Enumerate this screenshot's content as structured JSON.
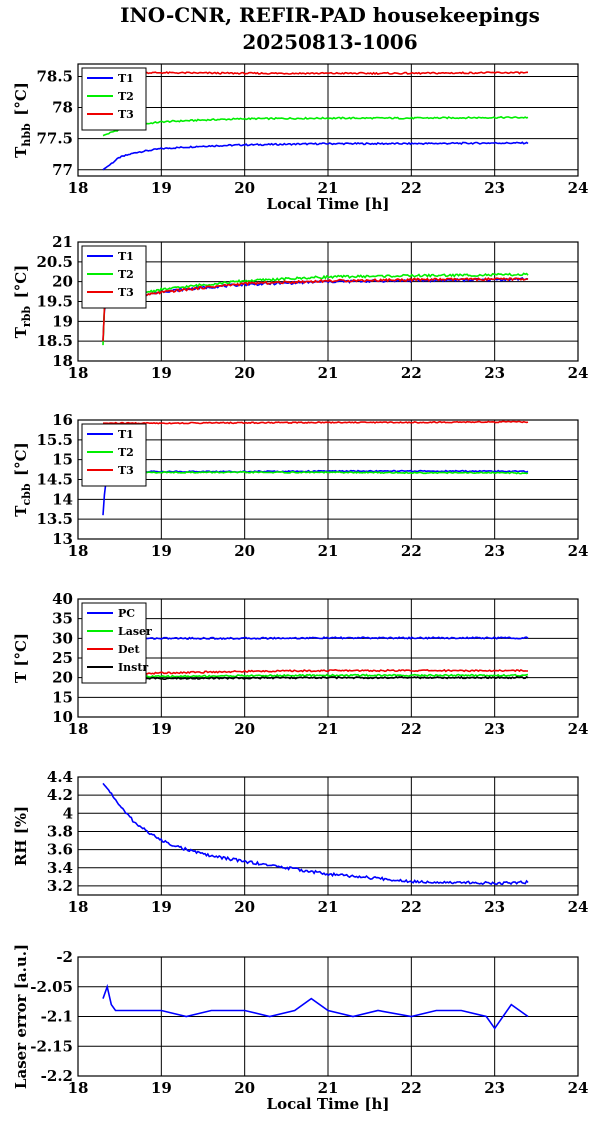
{
  "title_line1": "INO-CNR, REFIR-PAD housekeepings",
  "title_line2": "20250813-1006",
  "colors": {
    "blue": "#0000ff",
    "green": "#00ee00",
    "red": "#ee0000",
    "black": "#000000"
  },
  "chart_data": [
    {
      "type": "line",
      "ylabel": "T",
      "ylabel_sub": "hbb",
      "ylabel_unit": "[°C]",
      "xlabel": "Local Time [h]",
      "xlim": [
        18,
        24
      ],
      "ylim": [
        76.9,
        78.7
      ],
      "xticks": [
        18,
        19,
        20,
        21,
        22,
        23,
        24
      ],
      "yticks": [
        77,
        77.5,
        78,
        78.5
      ],
      "ytick_labels": [
        "77",
        "77.5",
        "78",
        "78.5"
      ],
      "grid": true,
      "legend_position": "top-left",
      "series": [
        {
          "name": "T1",
          "color": "#0000ff",
          "x": [
            18.3,
            18.5,
            18.7,
            19.0,
            19.5,
            20.0,
            21.0,
            22.0,
            23.0,
            23.4
          ],
          "y": [
            77.0,
            77.2,
            77.28,
            77.34,
            77.38,
            77.4,
            77.42,
            77.42,
            77.43,
            77.43
          ]
        },
        {
          "name": "T2",
          "color": "#00ee00",
          "x": [
            18.3,
            18.5,
            18.7,
            19.0,
            19.5,
            20.0,
            21.0,
            22.0,
            23.0,
            23.4
          ],
          "y": [
            77.55,
            77.65,
            77.72,
            77.77,
            77.8,
            77.82,
            77.83,
            77.83,
            77.84,
            77.84
          ]
        },
        {
          "name": "T3",
          "color": "#ee0000",
          "x": [
            18.3,
            18.7,
            19.0,
            20.0,
            21.0,
            22.0,
            23.0,
            23.4
          ],
          "y": [
            78.55,
            78.56,
            78.56,
            78.55,
            78.55,
            78.55,
            78.56,
            78.56
          ]
        }
      ]
    },
    {
      "type": "line",
      "ylabel": "T",
      "ylabel_sub": "rbb",
      "ylabel_unit": "[°C]",
      "xlabel": "",
      "xlim": [
        18,
        24
      ],
      "ylim": [
        18,
        21
      ],
      "xticks": [
        18,
        19,
        20,
        21,
        22,
        23,
        24
      ],
      "yticks": [
        18,
        18.5,
        19,
        19.5,
        20,
        20.5,
        21
      ],
      "ytick_labels": [
        "18",
        "18.5",
        "19",
        "19.5",
        "20",
        "20.5",
        "21"
      ],
      "grid": true,
      "legend_position": "top-left",
      "series": [
        {
          "name": "T1",
          "color": "#0000ff",
          "x": [
            18.3,
            18.32,
            18.4,
            18.7,
            19.0,
            19.5,
            20.0,
            21.0,
            22.0,
            23.0,
            23.4
          ],
          "y": [
            18.5,
            19.4,
            19.55,
            19.62,
            19.75,
            19.85,
            19.93,
            20.0,
            20.03,
            20.05,
            20.07
          ]
        },
        {
          "name": "T2",
          "color": "#00ee00",
          "x": [
            18.3,
            18.32,
            18.4,
            18.7,
            19.0,
            19.5,
            20.0,
            21.0,
            22.0,
            23.0,
            23.4
          ],
          "y": [
            18.4,
            19.5,
            19.6,
            19.7,
            19.8,
            19.92,
            20.02,
            20.12,
            20.15,
            20.17,
            20.18
          ]
        },
        {
          "name": "T3",
          "color": "#ee0000",
          "x": [
            18.3,
            18.32,
            18.4,
            18.7,
            19.0,
            19.5,
            20.0,
            21.0,
            22.0,
            23.0,
            23.4
          ],
          "y": [
            18.5,
            19.45,
            19.55,
            19.62,
            19.73,
            19.85,
            19.95,
            20.02,
            20.05,
            20.06,
            20.07
          ]
        }
      ]
    },
    {
      "type": "line",
      "ylabel": "T",
      "ylabel_sub": "cbb",
      "ylabel_unit": "[°C]",
      "xlabel": "",
      "xlim": [
        18,
        24
      ],
      "ylim": [
        13,
        16
      ],
      "xticks": [
        18,
        19,
        20,
        21,
        22,
        23,
        24
      ],
      "yticks": [
        13,
        13.5,
        14,
        14.5,
        15,
        15.5,
        16
      ],
      "ytick_labels": [
        "13",
        "13.5",
        "14",
        "14.5",
        "15",
        "15.5",
        "16"
      ],
      "grid": true,
      "legend_position": "top-left",
      "series": [
        {
          "name": "T1",
          "color": "#0000ff",
          "x": [
            18.3,
            18.32,
            18.35,
            18.4,
            19.0,
            20.0,
            21.0,
            22.0,
            23.0,
            23.4
          ],
          "y": [
            13.6,
            14.2,
            14.65,
            14.7,
            14.7,
            14.7,
            14.71,
            14.71,
            14.71,
            14.7
          ]
        },
        {
          "name": "T2",
          "color": "#00ee00",
          "x": [
            18.3,
            18.4,
            19.0,
            20.0,
            21.0,
            22.0,
            23.0,
            23.4
          ],
          "y": [
            14.7,
            14.68,
            14.68,
            14.68,
            14.68,
            14.67,
            14.67,
            14.66
          ]
        },
        {
          "name": "T3",
          "color": "#ee0000",
          "x": [
            18.3,
            19.0,
            20.0,
            21.0,
            22.0,
            23.0,
            23.4
          ],
          "y": [
            15.92,
            15.92,
            15.93,
            15.94,
            15.94,
            15.95,
            15.95
          ]
        }
      ]
    },
    {
      "type": "line",
      "ylabel": "T [°C]",
      "ylabel_sub": "",
      "ylabel_unit": "",
      "xlabel": "",
      "xlim": [
        18,
        24
      ],
      "ylim": [
        10,
        40
      ],
      "xticks": [
        18,
        19,
        20,
        21,
        22,
        23,
        24
      ],
      "yticks": [
        10,
        15,
        20,
        25,
        30,
        35,
        40
      ],
      "ytick_labels": [
        "10",
        "15",
        "20",
        "25",
        "30",
        "35",
        "40"
      ],
      "grid": true,
      "legend_position": "top-left",
      "series": [
        {
          "name": "PC",
          "color": "#0000ff",
          "x": [
            18.3,
            19.0,
            20.0,
            21.0,
            22.0,
            23.0,
            23.4
          ],
          "y": [
            30.0,
            30.0,
            30.0,
            30.1,
            30.1,
            30.1,
            30.1
          ]
        },
        {
          "name": "Laser",
          "color": "#00ee00",
          "x": [
            18.3,
            19.0,
            20.0,
            21.0,
            22.0,
            23.0,
            23.4
          ],
          "y": [
            20.2,
            20.3,
            20.5,
            20.6,
            20.6,
            20.6,
            20.6
          ]
        },
        {
          "name": "Det",
          "color": "#ee0000",
          "x": [
            18.3,
            19.0,
            20.0,
            21.0,
            22.0,
            23.0,
            23.4
          ],
          "y": [
            20.8,
            21.2,
            21.6,
            21.8,
            21.8,
            21.8,
            21.8
          ]
        },
        {
          "name": "Instr",
          "color": "#000000",
          "x": [
            18.3,
            19.0,
            20.0,
            21.0,
            22.0,
            23.0,
            23.4
          ],
          "y": [
            19.8,
            19.8,
            19.9,
            20.0,
            20.0,
            20.0,
            20.0
          ]
        }
      ]
    },
    {
      "type": "line",
      "ylabel": "RH [%]",
      "ylabel_sub": "",
      "ylabel_unit": "",
      "xlabel": "",
      "xlim": [
        18,
        24
      ],
      "ylim": [
        3.1,
        4.4
      ],
      "xticks": [
        18,
        19,
        20,
        21,
        22,
        23,
        24
      ],
      "yticks": [
        3.2,
        3.4,
        3.6,
        3.8,
        4.0,
        4.2,
        4.4
      ],
      "ytick_labels": [
        "3.2",
        "3.4",
        "3.6",
        "3.8",
        "4",
        "4.2",
        "4.4"
      ],
      "grid": true,
      "legend_position": "none",
      "series": [
        {
          "color": "#0000ff",
          "x": [
            18.3,
            18.4,
            18.5,
            18.7,
            19.0,
            19.3,
            19.6,
            20.0,
            20.5,
            21.0,
            21.5,
            22.0,
            22.5,
            23.0,
            23.4
          ],
          "y": [
            4.33,
            4.22,
            4.08,
            3.88,
            3.7,
            3.6,
            3.53,
            3.47,
            3.4,
            3.33,
            3.29,
            3.25,
            3.24,
            3.23,
            3.24
          ]
        }
      ]
    },
    {
      "type": "line",
      "ylabel": "Laser error [a.u.]",
      "ylabel_sub": "",
      "ylabel_unit": "",
      "xlabel": "Local Time [h]",
      "xlim": [
        18,
        24
      ],
      "ylim": [
        -2.2,
        -2.0
      ],
      "xticks": [
        18,
        19,
        20,
        21,
        22,
        23,
        24
      ],
      "yticks": [
        -2.2,
        -2.15,
        -2.1,
        -2.05,
        -2.0
      ],
      "ytick_labels": [
        "-2.2",
        "-2.15",
        "-2.1",
        "-2.05",
        "-2"
      ],
      "grid": true,
      "legend_position": "none",
      "series": [
        {
          "color": "#0000ff",
          "x": [
            18.3,
            18.35,
            18.4,
            18.45,
            18.5,
            18.7,
            19.0,
            19.3,
            19.6,
            20.0,
            20.3,
            20.6,
            20.8,
            21.0,
            21.3,
            21.6,
            22.0,
            22.3,
            22.6,
            22.9,
            23.0,
            23.2,
            23.4
          ],
          "y": [
            -2.07,
            -2.05,
            -2.08,
            -2.09,
            -2.09,
            -2.09,
            -2.09,
            -2.1,
            -2.09,
            -2.09,
            -2.1,
            -2.09,
            -2.07,
            -2.09,
            -2.1,
            -2.09,
            -2.1,
            -2.09,
            -2.09,
            -2.1,
            -2.12,
            -2.08,
            -2.1
          ]
        }
      ]
    }
  ]
}
